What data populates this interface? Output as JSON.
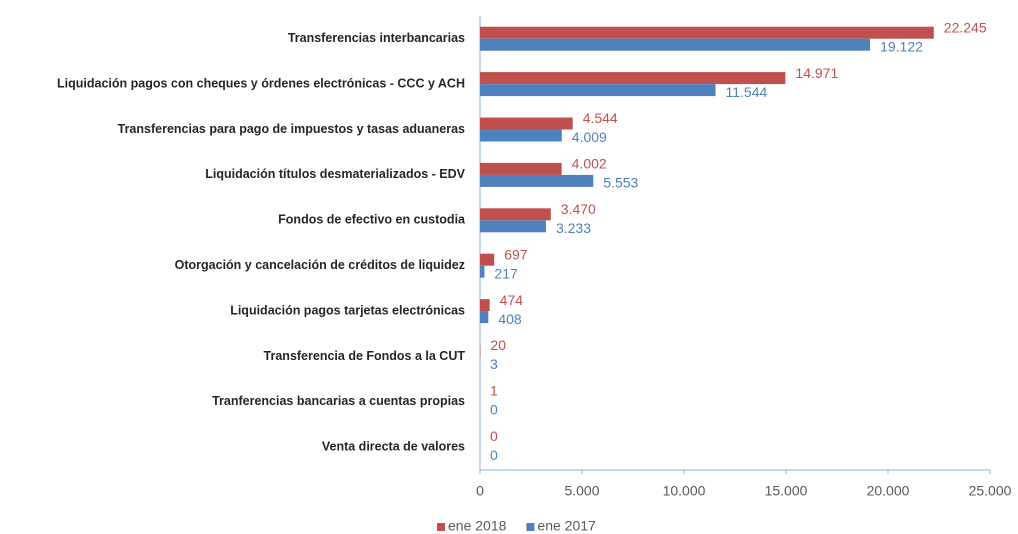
{
  "chart_data": {
    "type": "barh",
    "categories": [
      "Transferencias interbancarias",
      "Liquidación pagos con cheques y órdenes electrónicas - CCC y ACH",
      "Transferencias para pago de impuestos y tasas aduaneras",
      "Liquidación títulos desmaterializados - EDV",
      "Fondos de efectivo en custodia",
      "Otorgación y cancelación de créditos de liquidez",
      "Liquidación pagos tarjetas electrónicas",
      "Transferencia de Fondos a la CUT",
      "Tranferencias bancarias a cuentas propias",
      "Venta directa de valores"
    ],
    "series": [
      {
        "name": "ene 2018",
        "color": "#c0504d",
        "values": [
          22245,
          14971,
          4544,
          4002,
          3470,
          697,
          474,
          20,
          1,
          0
        ],
        "value_labels": [
          "22.245",
          "14.971",
          "4.544",
          "4.002",
          "3.470",
          "697",
          "474",
          "20",
          "1",
          "0"
        ]
      },
      {
        "name": "ene 2017",
        "color": "#4f81bd",
        "values": [
          19122,
          11544,
          4009,
          5553,
          3233,
          217,
          408,
          3,
          0,
          0
        ],
        "value_labels": [
          "19.122",
          "11.544",
          "4.009",
          "5.553",
          "3.233",
          "217",
          "408",
          "3",
          "0",
          "0"
        ]
      }
    ],
    "xlim": [
      0,
      25000
    ],
    "xticks": [
      0,
      {
        "value": 5000,
        "label": "5.000"
      },
      {
        "value": 10000,
        "label": "10.000"
      },
      {
        "value": 15000,
        "label": "15.000"
      },
      {
        "value": 20000,
        "label": "20.000"
      },
      {
        "value": 25000,
        "label": "25.000"
      }
    ],
    "legend": "bottom"
  }
}
